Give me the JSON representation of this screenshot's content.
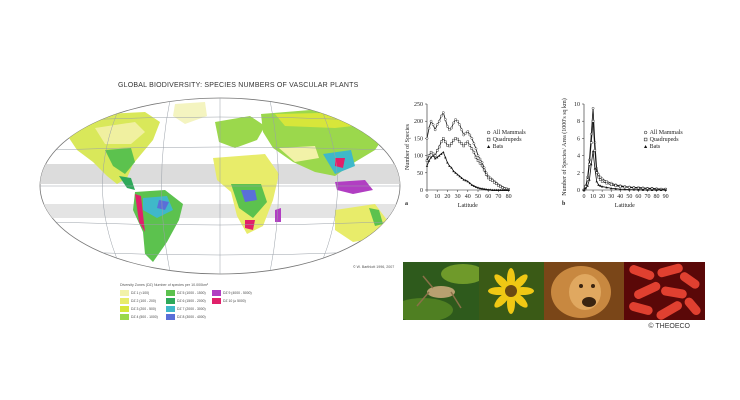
{
  "map": {
    "title": "GLOBAL BIODIVERSITY:  SPECIES NUMBERS OF VASCULAR PLANTS",
    "legend_title": "Diversity Zones (DZ)  Number of species per 10.000km²",
    "legend": [
      {
        "label": "DZ 1   (<100)",
        "color": "#f2f2a8"
      },
      {
        "label": "DZ 2   (100 - 200)",
        "color": "#e8ec6a"
      },
      {
        "label": "DZ 3   (200 - 500)",
        "color": "#d7e63a"
      },
      {
        "label": "DZ 4   (500 - 1000)",
        "color": "#9bd84c"
      },
      {
        "label": "DZ 5   (1000 - 1500)",
        "color": "#5cc24e"
      },
      {
        "label": "DZ 6   (1500 - 2000)",
        "color": "#2ea95a"
      },
      {
        "label": "DZ 7   (2000 - 3000)",
        "color": "#3fb8c9"
      },
      {
        "label": "DZ 8   (3000 - 4000)",
        "color": "#5a6fd8"
      },
      {
        "label": "DZ 9   (4000 - 5000)",
        "color": "#b13ec2"
      },
      {
        "label": "DZ 10  (≥ 5000)",
        "color": "#e0206a"
      }
    ],
    "credit": "© W. Barthlott 1996, 2007",
    "colors": {
      "ocean": "#ffffff",
      "desert_band": "#d5d5d5",
      "grid": "#9aa0a8"
    }
  },
  "chart_a": {
    "panel_label": "a",
    "xlabel": "Latitude",
    "ylabel": "Number of Species",
    "xticks": [
      "0",
      "10",
      "20",
      "30",
      "40",
      "50",
      "60",
      "70",
      "80"
    ],
    "yticks": [
      "0",
      "50",
      "100",
      "150",
      "200",
      "250"
    ],
    "ylim": [
      0,
      250
    ],
    "legend": [
      "All Mammals",
      "Quadrupeds",
      "Bats"
    ]
  },
  "chart_b": {
    "panel_label": "b",
    "xlabel": "Latitude",
    "ylabel": "Number of Species/ Area (1000's sq km)",
    "xticks": [
      "0",
      "10",
      "20",
      "30",
      "40",
      "50",
      "60",
      "70",
      "80",
      "90"
    ],
    "yticks": [
      "0",
      "2",
      "4",
      "6",
      "8",
      "10"
    ],
    "ylim": [
      0,
      10
    ],
    "legend": [
      "All Mammals",
      "Quadrupeds",
      "Bats"
    ]
  },
  "chart_data": [
    {
      "type": "line",
      "x": [
        0,
        2,
        4,
        6,
        8,
        10,
        12,
        14,
        16,
        18,
        20,
        22,
        24,
        26,
        28,
        30,
        32,
        34,
        36,
        38,
        40,
        42,
        44,
        46,
        48,
        50,
        52,
        54,
        56,
        58,
        60,
        62,
        64,
        66,
        68,
        70,
        72,
        74,
        76,
        78,
        80
      ],
      "xlabel": "Latitude",
      "ylabel": "Number of Species",
      "ylim": [
        0,
        250
      ],
      "series": [
        {
          "name": "All Mammals",
          "values": [
            150,
            180,
            200,
            190,
            175,
            190,
            200,
            215,
            225,
            205,
            185,
            175,
            180,
            195,
            205,
            200,
            190,
            175,
            160,
            165,
            170,
            160,
            150,
            135,
            120,
            100,
            90,
            80,
            65,
            50,
            40,
            35,
            30,
            25,
            20,
            15,
            12,
            8,
            5,
            3,
            2
          ]
        },
        {
          "name": "Quadrupeds",
          "values": [
            85,
            100,
            110,
            105,
            100,
            115,
            125,
            140,
            150,
            140,
            130,
            128,
            135,
            145,
            150,
            148,
            140,
            135,
            128,
            135,
            140,
            130,
            120,
            110,
            95,
            85,
            78,
            70,
            58,
            45,
            35,
            30,
            27,
            22,
            18,
            13,
            10,
            7,
            4,
            3,
            2
          ]
        },
        {
          "name": "Bats",
          "values": [
            70,
            85,
            95,
            100,
            92,
            95,
            100,
            105,
            110,
            95,
            80,
            70,
            65,
            55,
            50,
            45,
            40,
            35,
            30,
            28,
            25,
            20,
            15,
            12,
            9,
            7,
            5,
            4,
            3,
            2,
            1,
            1,
            0,
            0,
            0,
            0,
            0,
            0,
            0,
            0,
            0
          ]
        }
      ]
    },
    {
      "type": "line",
      "x": [
        0,
        2,
        4,
        6,
        8,
        10,
        12,
        14,
        16,
        18,
        20,
        25,
        30,
        35,
        40,
        45,
        50,
        55,
        60,
        65,
        70,
        75,
        80,
        85,
        90
      ],
      "xlabel": "Latitude",
      "ylabel": "Number of Species/ Area (1000's sq km)",
      "ylim": [
        0,
        10
      ],
      "series": [
        {
          "name": "All Mammals",
          "values": [
            0,
            0.5,
            1.5,
            3.5,
            6.5,
            9.5,
            5.5,
            2.5,
            1.8,
            1.5,
            1.3,
            1.0,
            0.8,
            0.6,
            0.5,
            0.4,
            0.35,
            0.3,
            0.3,
            0.25,
            0.2,
            0.2,
            0.15,
            0.1,
            0.1
          ]
        },
        {
          "name": "Quadrupeds",
          "values": [
            0,
            0.4,
            1.2,
            3.0,
            5.5,
            8.0,
            4.6,
            2.0,
            1.5,
            1.2,
            1.0,
            0.8,
            0.6,
            0.5,
            0.4,
            0.35,
            0.3,
            0.25,
            0.2,
            0.2,
            0.15,
            0.15,
            0.1,
            0.1,
            0.1
          ]
        },
        {
          "name": "Bats",
          "values": [
            0,
            0.2,
            0.5,
            1.2,
            3.0,
            4.5,
            2.5,
            1.0,
            0.6,
            0.5,
            0.4,
            0.3,
            0.2,
            0.15,
            0.1,
            0.08,
            0.05,
            0.04,
            0.03,
            0.02,
            0.01,
            0,
            0,
            0,
            0
          ]
        }
      ]
    }
  ],
  "photos": [
    {
      "subject": "grasshopper",
      "colors": [
        "#2e5a1c",
        "#6f9a2a",
        "#b8a070"
      ]
    },
    {
      "subject": "yellow-flower",
      "colors": [
        "#3a5a16",
        "#f0c814",
        "#6b4a12"
      ]
    },
    {
      "subject": "lion",
      "colors": [
        "#7a4618",
        "#c88840",
        "#3a2410"
      ]
    },
    {
      "subject": "bacteria",
      "colors": [
        "#a01010",
        "#e04030",
        "#5a0808"
      ]
    }
  ],
  "copyright": "© THEOECO"
}
